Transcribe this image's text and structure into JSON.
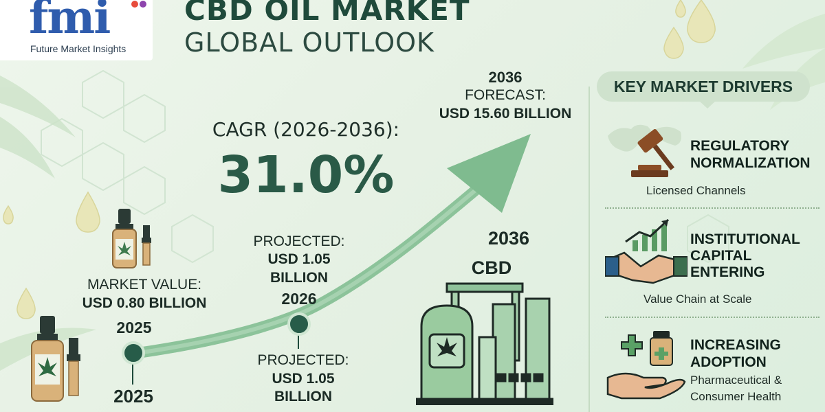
{
  "logo": {
    "mark": "fmi",
    "subtitle": "Future Market Insights"
  },
  "header": {
    "title_line1": "CBD OIL MARKET",
    "title_line2": "GLOBAL OUTLOOK"
  },
  "cagr": {
    "label": "CAGR (2026-2036):",
    "value": "31.0%"
  },
  "market_value": {
    "label": "MARKET VALUE:",
    "value": "USD 0.80 BILLION",
    "year": "2025"
  },
  "timeline": {
    "year_2025_bottom": "2025",
    "projected_upper": {
      "label": "PROJECTED:",
      "value_line1": "USD 1.05",
      "value_line2": "BILLION",
      "year": "2026"
    },
    "projected_lower": {
      "label": "PROJECTED:",
      "value_line1": "USD 1.05",
      "value_line2": "BILLION"
    },
    "forecast": {
      "year": "2036",
      "label": "FORECAST:",
      "value": "USD 15.60 BILLION"
    },
    "factory_year": "2036",
    "factory_label": "CBD"
  },
  "drivers": {
    "title": "KEY MARKET DRIVERS",
    "items": [
      {
        "title_line1": "REGULATORY",
        "title_line2": "NORMALIZATION",
        "subtitle": "Licensed Channels",
        "icon": "gavel-world-icon"
      },
      {
        "title_line1": "INSTITUTIONAL",
        "title_line2": "CAPITAL",
        "title_line3": "ENTERING",
        "subtitle": "Value Chain at Scale",
        "icon": "handshake-chart-icon"
      },
      {
        "title_line1": "INCREASING",
        "title_line2": "ADOPTION",
        "subtitle_line1": "Pharmaceutical &",
        "subtitle_line2": "Consumer Health",
        "icon": "hand-medicine-icon"
      }
    ]
  },
  "colors": {
    "dark_green": "#275c49",
    "mid_green": "#8fc29a",
    "bg_green": "#e6f1e4",
    "logo_blue": "#2f5cad"
  }
}
